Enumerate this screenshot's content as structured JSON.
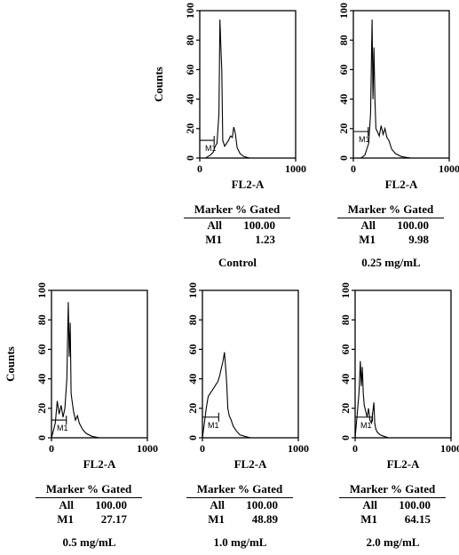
{
  "chart_data": [
    {
      "type": "histogram",
      "title": "Control",
      "xlabel": "FL2-A",
      "ylabel": "Counts",
      "xlim": [
        0,
        1000
      ],
      "ylim": [
        0,
        100
      ],
      "xticks": [
        "0",
        "1000"
      ],
      "yticks": [
        "0",
        "20",
        "40",
        "60",
        "80",
        "100"
      ],
      "marker": {
        "name": "M1",
        "range": [
          0,
          150
        ],
        "level": 12
      },
      "profile": {
        "x": [
          0,
          60,
          110,
          140,
          160,
          180,
          200,
          210,
          220,
          230,
          240,
          260,
          280,
          300,
          320,
          340,
          355,
          370,
          390,
          420,
          460,
          520,
          600,
          700,
          800,
          1000
        ],
        "y": [
          0,
          0,
          2,
          4,
          8,
          10,
          30,
          94,
          75,
          60,
          12,
          8,
          10,
          12,
          15,
          14,
          21,
          17,
          7,
          3,
          1,
          0,
          0,
          0,
          0,
          0
        ]
      },
      "stats": {
        "header": "Marker % Gated",
        "rows": [
          {
            "label": "All",
            "value": "100.00"
          },
          {
            "label": "M1",
            "value": "1.23"
          }
        ]
      }
    },
    {
      "type": "histogram",
      "title": "0.25 mg/mL",
      "xlabel": "FL2-A",
      "ylabel": "",
      "xlim": [
        0,
        1000
      ],
      "ylim": [
        0,
        100
      ],
      "xticks": [
        "0",
        "1000"
      ],
      "yticks": [
        "0",
        "20",
        "40",
        "60",
        "80",
        "100"
      ],
      "marker": {
        "name": "M1",
        "range": [
          0,
          155
        ],
        "level": 18
      },
      "profile": {
        "x": [
          0,
          80,
          120,
          140,
          160,
          180,
          195,
          205,
          215,
          225,
          235,
          250,
          270,
          290,
          310,
          330,
          350,
          370,
          400,
          440,
          500,
          600,
          700,
          1000
        ],
        "y": [
          0,
          0,
          2,
          6,
          10,
          30,
          94,
          40,
          75,
          40,
          20,
          18,
          15,
          22,
          16,
          20,
          14,
          12,
          6,
          3,
          1,
          0,
          0,
          0
        ]
      },
      "stats": {
        "header": "Marker % Gated",
        "rows": [
          {
            "label": "All",
            "value": "100.00"
          },
          {
            "label": "M1",
            "value": "9.98"
          }
        ]
      }
    },
    {
      "type": "histogram",
      "title": "0.5 mg/mL",
      "xlabel": "FL2-A",
      "ylabel": "Counts",
      "xlim": [
        0,
        1000
      ],
      "ylim": [
        0,
        100
      ],
      "xticks": [
        "0",
        "1000"
      ],
      "yticks": [
        "0",
        "20",
        "40",
        "60",
        "80",
        "100"
      ],
      "marker": {
        "name": "M1",
        "range": [
          0,
          155
        ],
        "level": 12
      },
      "profile": {
        "x": [
          0,
          20,
          40,
          60,
          80,
          100,
          120,
          140,
          160,
          175,
          185,
          195,
          205,
          215,
          230,
          250,
          270,
          290,
          320,
          360,
          420,
          500,
          600,
          1000
        ],
        "y": [
          0,
          5,
          10,
          25,
          16,
          22,
          14,
          20,
          40,
          92,
          55,
          78,
          30,
          25,
          18,
          12,
          15,
          10,
          6,
          3,
          1,
          0,
          0,
          0
        ]
      },
      "stats": {
        "header": "Marker % Gated",
        "rows": [
          {
            "label": "All",
            "value": "100.00"
          },
          {
            "label": "M1",
            "value": "27.17"
          }
        ]
      }
    },
    {
      "type": "histogram",
      "title": "1.0 mg/mL",
      "xlabel": "FL2-A",
      "ylabel": "",
      "xlim": [
        0,
        1000
      ],
      "ylim": [
        0,
        100
      ],
      "xticks": [
        "0",
        "1000"
      ],
      "yticks": [
        "0",
        "20",
        "40",
        "60",
        "80",
        "100"
      ],
      "marker": {
        "name": "M1",
        "range": [
          0,
          170
        ],
        "level": 14
      },
      "profile": {
        "x": [
          0,
          20,
          40,
          60,
          80,
          100,
          120,
          140,
          160,
          180,
          200,
          215,
          230,
          245,
          255,
          265,
          280,
          300,
          320,
          350,
          390,
          440,
          500,
          600,
          1000
        ],
        "y": [
          0,
          10,
          20,
          28,
          30,
          32,
          34,
          36,
          38,
          42,
          48,
          52,
          58,
          45,
          35,
          20,
          15,
          12,
          8,
          5,
          2,
          1,
          0,
          0,
          0
        ]
      },
      "stats": {
        "header": "Marker % Gated",
        "rows": [
          {
            "label": "All",
            "value": "100.00"
          },
          {
            "label": "M1",
            "value": "48.89"
          }
        ]
      }
    },
    {
      "type": "histogram",
      "title": "2.0 mg/mL",
      "xlabel": "FL2-A",
      "ylabel": "",
      "xlim": [
        0,
        1000
      ],
      "ylim": [
        0,
        100
      ],
      "xticks": [
        "0",
        "1000"
      ],
      "yticks": [
        "0",
        "20",
        "40",
        "60",
        "80",
        "100"
      ],
      "marker": {
        "name": "M1",
        "range": [
          0,
          180
        ],
        "level": 14
      },
      "profile": {
        "x": [
          0,
          20,
          40,
          55,
          65,
          75,
          85,
          95,
          110,
          125,
          140,
          155,
          170,
          185,
          195,
          205,
          215,
          230,
          260,
          300,
          350,
          400,
          500,
          1000
        ],
        "y": [
          0,
          15,
          30,
          52,
          35,
          48,
          30,
          22,
          18,
          14,
          20,
          12,
          10,
          18,
          24,
          10,
          6,
          4,
          2,
          1,
          0,
          0,
          0,
          0
        ]
      },
      "stats": {
        "header": "Marker % Gated",
        "rows": [
          {
            "label": "All",
            "value": "100.00"
          },
          {
            "label": "M1",
            "value": "64.15"
          }
        ]
      }
    }
  ]
}
